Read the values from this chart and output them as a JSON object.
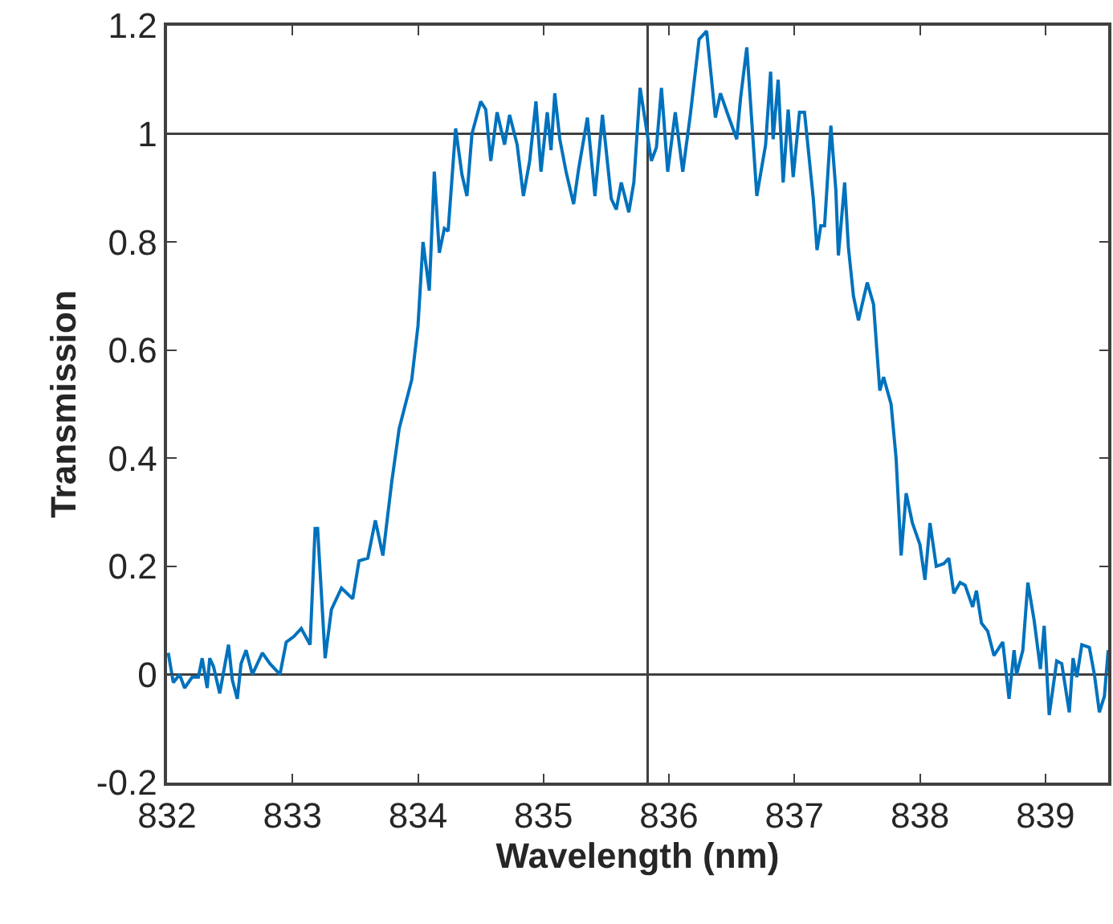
{
  "chart_data": {
    "type": "line",
    "xlabel": "Wavelength (nm)",
    "ylabel": "Transmission",
    "xlim": [
      832,
      839.5
    ],
    "ylim": [
      -0.2,
      1.2
    ],
    "xticks": [
      832,
      833,
      834,
      835,
      836,
      837,
      838,
      839
    ],
    "yticks": [
      -0.2,
      0,
      0.2,
      0.4,
      0.6,
      0.8,
      1,
      1.2
    ],
    "grid": false,
    "marker": "none",
    "line_style": "solid",
    "ref_lines": [
      {
        "axis": "y",
        "value": 0,
        "color": "#404040"
      },
      {
        "axis": "y",
        "value": 1,
        "color": "#404040"
      },
      {
        "axis": "x",
        "value": 835.83,
        "color": "#404040"
      }
    ],
    "series": [
      {
        "color": "#0072bd",
        "x": [
          832.01,
          832.05,
          832.1,
          832.14,
          832.2,
          832.25,
          832.28,
          832.32,
          832.34,
          832.37,
          832.42,
          832.49,
          832.52,
          832.56,
          832.59,
          832.63,
          832.68,
          832.76,
          832.82,
          832.9,
          832.95,
          833.01,
          833.07,
          833.14,
          833.18,
          833.2,
          833.26,
          833.31,
          833.39,
          833.48,
          833.53,
          833.6,
          833.66,
          833.72,
          833.79,
          833.85,
          833.95,
          834.0,
          834.04,
          834.09,
          834.13,
          834.17,
          834.21,
          834.24,
          834.3,
          834.35,
          834.39,
          834.43,
          834.5,
          834.54,
          834.58,
          834.63,
          834.69,
          834.73,
          834.79,
          834.84,
          834.89,
          834.94,
          834.98,
          835.03,
          835.06,
          835.09,
          835.13,
          835.18,
          835.24,
          835.28,
          835.35,
          835.41,
          835.47,
          835.54,
          835.58,
          835.62,
          835.68,
          835.72,
          835.77,
          835.86,
          835.9,
          835.94,
          835.99,
          836.05,
          836.11,
          836.17,
          836.24,
          836.3,
          836.37,
          836.41,
          836.47,
          836.54,
          836.57,
          836.62,
          836.7,
          836.77,
          836.81,
          836.83,
          836.87,
          836.91,
          836.95,
          836.99,
          837.04,
          837.08,
          837.15,
          837.18,
          837.21,
          837.24,
          837.29,
          837.33,
          837.35,
          837.4,
          837.43,
          837.47,
          837.51,
          837.58,
          837.63,
          837.68,
          837.71,
          837.77,
          837.81,
          837.85,
          837.89,
          837.94,
          838.0,
          838.04,
          838.08,
          838.13,
          838.19,
          838.23,
          838.27,
          838.32,
          838.36,
          838.42,
          838.45,
          838.49,
          838.54,
          838.59,
          838.66,
          838.71,
          838.75,
          838.77,
          838.82,
          838.86,
          838.91,
          838.96,
          838.99,
          839.03,
          839.09,
          839.13,
          839.19,
          839.22,
          839.25,
          839.29,
          839.35,
          839.39,
          839.43,
          839.47,
          839.5
        ],
        "values": [
          0.04,
          -0.015,
          0.0,
          -0.025,
          -0.005,
          -0.005,
          0.03,
          -0.025,
          0.03,
          0.015,
          -0.035,
          0.055,
          -0.01,
          -0.045,
          0.02,
          0.045,
          0.0,
          0.04,
          0.02,
          0.0,
          0.06,
          0.07,
          0.085,
          0.055,
          0.27,
          0.27,
          0.03,
          0.12,
          0.16,
          0.14,
          0.21,
          0.215,
          0.285,
          0.22,
          0.355,
          0.455,
          0.545,
          0.645,
          0.8,
          0.71,
          0.93,
          0.78,
          0.825,
          0.82,
          1.01,
          0.925,
          0.885,
          1.0,
          1.06,
          1.045,
          0.95,
          1.04,
          0.98,
          1.035,
          0.98,
          0.885,
          0.95,
          1.06,
          0.93,
          1.04,
          0.97,
          1.075,
          0.99,
          0.93,
          0.87,
          0.935,
          1.03,
          0.885,
          1.035,
          0.88,
          0.86,
          0.91,
          0.855,
          0.91,
          1.085,
          0.95,
          0.975,
          1.085,
          0.93,
          1.04,
          0.93,
          1.035,
          1.175,
          1.19,
          1.03,
          1.075,
          1.035,
          0.99,
          1.065,
          1.16,
          0.885,
          0.98,
          1.115,
          0.99,
          1.1,
          0.91,
          1.045,
          0.92,
          1.04,
          1.04,
          0.88,
          0.785,
          0.83,
          0.83,
          1.015,
          0.895,
          0.775,
          0.91,
          0.79,
          0.7,
          0.655,
          0.725,
          0.685,
          0.525,
          0.55,
          0.5,
          0.4,
          0.22,
          0.335,
          0.28,
          0.24,
          0.175,
          0.28,
          0.2,
          0.205,
          0.215,
          0.15,
          0.17,
          0.165,
          0.125,
          0.155,
          0.095,
          0.08,
          0.035,
          0.06,
          -0.045,
          0.045,
          0.0,
          0.045,
          0.17,
          0.1,
          0.01,
          0.09,
          -0.075,
          0.025,
          0.02,
          -0.07,
          0.03,
          -0.005,
          0.055,
          0.05,
          0.0,
          -0.07,
          -0.04,
          0.045
        ]
      }
    ]
  }
}
